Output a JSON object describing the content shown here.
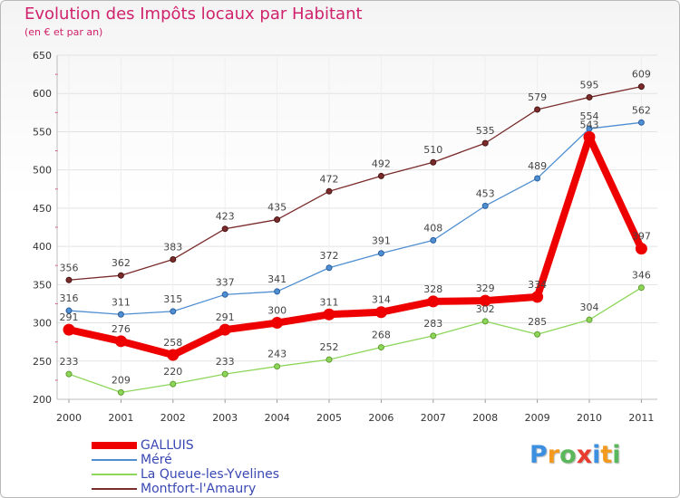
{
  "header": {
    "title": "Evolution des Impôts locaux par Habitant",
    "subtitle": "(en € et par an)"
  },
  "chart_data": {
    "type": "line",
    "title": "Evolution des Impôts locaux par Habitant",
    "subtitle": "(en € et par an)",
    "xlabel": "",
    "ylabel": "",
    "categories": [
      "2000",
      "2001",
      "2002",
      "2003",
      "2004",
      "2005",
      "2006",
      "2007",
      "2008",
      "2009",
      "2010",
      "2011"
    ],
    "ylim": [
      200,
      650
    ],
    "yticks": [
      200,
      250,
      300,
      350,
      400,
      450,
      500,
      550,
      600,
      650
    ],
    "grid": true,
    "legend_position": "bottom-left",
    "series": [
      {
        "name": "GALLUIS",
        "color": "#ee0000",
        "values": [
          291,
          276,
          258,
          291,
          300,
          311,
          314,
          328,
          329,
          334,
          543,
          397
        ]
      },
      {
        "name": "Méré",
        "color": "#4f8fd1",
        "values": [
          316,
          311,
          315,
          337,
          341,
          372,
          391,
          408,
          453,
          489,
          554,
          562
        ]
      },
      {
        "name": "La Queue-les-Yvelines",
        "color": "#8ed65a",
        "values": [
          233,
          209,
          220,
          233,
          243,
          252,
          268,
          283,
          302,
          285,
          304,
          346
        ]
      },
      {
        "name": "Montfort-l'Amaury",
        "color": "#7a2b2b",
        "values": [
          356,
          362,
          383,
          423,
          435,
          472,
          492,
          510,
          535,
          579,
          595,
          609
        ]
      }
    ]
  },
  "logo": {
    "letters": [
      "P",
      "r",
      "o",
      "x",
      "i",
      "t",
      "i"
    ],
    "colors": [
      "#3d8fe0",
      "#f39a1e",
      "#5bb75b",
      "#e83c2e",
      "#3d8fe0",
      "#f39a1e",
      "#5bb75b"
    ]
  }
}
